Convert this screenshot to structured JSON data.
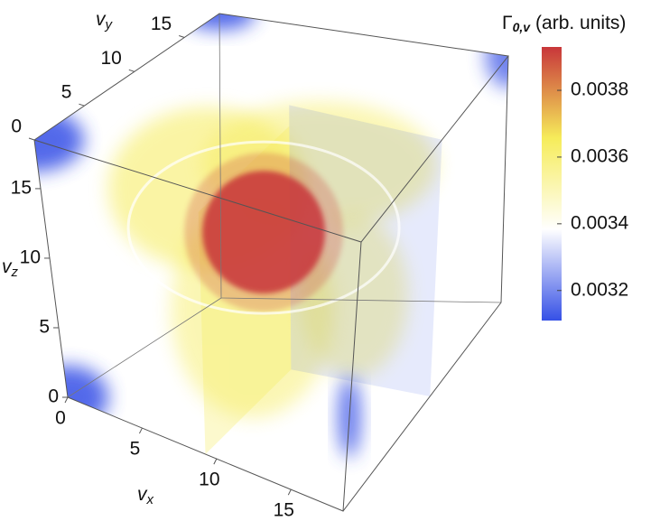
{
  "chart_data": {
    "type": "volume",
    "xlabel": {
      "base": "v",
      "sub": "x"
    },
    "ylabel": {
      "base": "v",
      "sub": "y"
    },
    "zlabel": {
      "base": "v",
      "sub": "z"
    },
    "xlim": [
      0,
      18.5
    ],
    "ylim": [
      0,
      18.5
    ],
    "zlim": [
      0,
      18.5
    ],
    "xticks": [
      0,
      5,
      10,
      15
    ],
    "yticks": [
      0,
      5,
      10,
      15
    ],
    "zticks": [
      0,
      5,
      10,
      15
    ],
    "colorbar": {
      "title": {
        "base": "Γ",
        "sub": "0,v",
        "units": "(arb. units)"
      },
      "lim": [
        0.00311,
        0.00393
      ],
      "ticks": [
        0.0032,
        0.0034,
        0.0036,
        0.0038
      ],
      "colors": [
        "#3550e6",
        "#ffffff",
        "#f6ec5a",
        "#c8363a"
      ]
    }
  }
}
